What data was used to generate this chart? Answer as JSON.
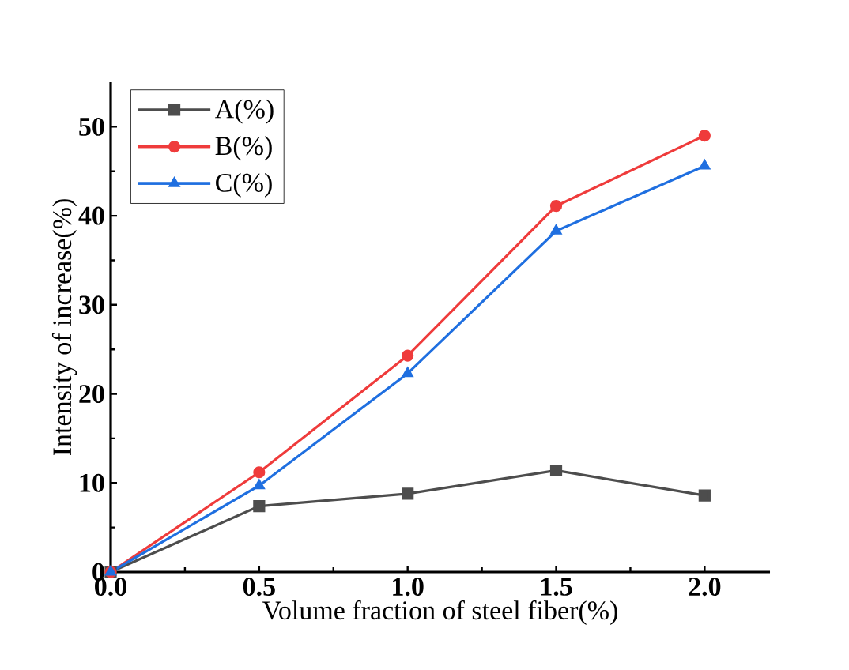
{
  "chart_data": {
    "type": "line",
    "xlabel": "Volume fraction of steel fiber(%)",
    "ylabel": "Intensity of increase(%)",
    "x": [
      0,
      0.5,
      1.0,
      1.5,
      2.0
    ],
    "series": [
      {
        "name": "A(%)",
        "color": "#4d4d4d",
        "marker": "square",
        "values": [
          0,
          7.4,
          8.8,
          11.4,
          8.6
        ]
      },
      {
        "name": "B(%)",
        "color": "#ef3b3b",
        "marker": "circle",
        "values": [
          0,
          11.2,
          24.3,
          41.1,
          49.0
        ]
      },
      {
        "name": "C(%)",
        "color": "#1f6fe0",
        "marker": "triangle",
        "values": [
          0,
          9.7,
          22.3,
          38.3,
          45.6
        ]
      }
    ],
    "xlim": [
      0,
      2.22
    ],
    "ylim": [
      0,
      55
    ],
    "xticks": [
      {
        "value": 0,
        "label": "0.0"
      },
      0.5,
      {
        "value": 1,
        "label": "1.0"
      },
      1.5,
      {
        "value": 2,
        "label": "2.0"
      }
    ],
    "yticks": [
      0,
      10,
      20,
      30,
      40,
      50
    ],
    "legend": "top left",
    "grid": false
  }
}
